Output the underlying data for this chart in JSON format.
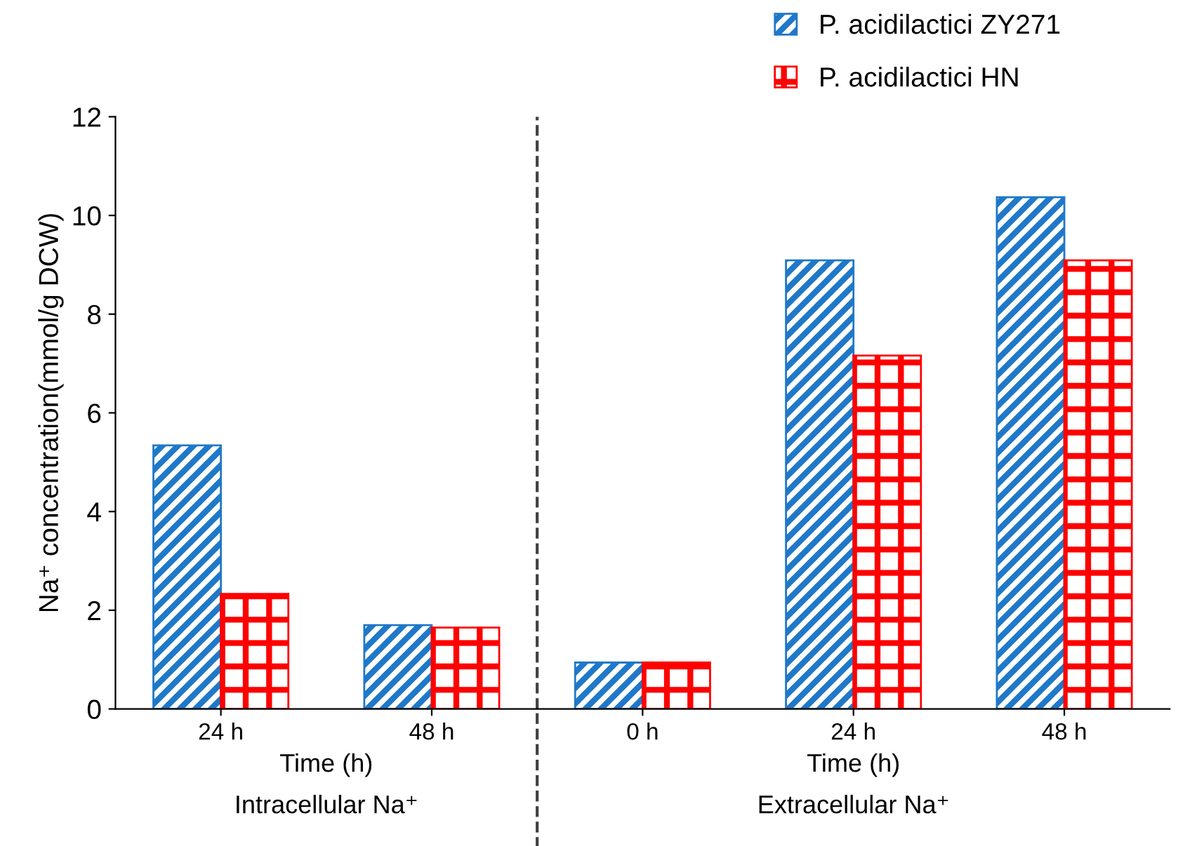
{
  "chart_data": {
    "type": "bar",
    "categories": [
      "24 h",
      "48 h",
      "0 h",
      "24 h",
      "48 h"
    ],
    "series": [
      {
        "name": "P. acidilactici ZY271",
        "color": "#1f78c8",
        "values": [
          5.34,
          1.7,
          0.94,
          9.09,
          10.37
        ]
      },
      {
        "name": "P. acidilactici HN",
        "color": "#ff0000",
        "values": [
          2.33,
          1.65,
          0.94,
          7.16,
          9.09
        ]
      }
    ],
    "xlabel": "Time (h)",
    "ylabel": "Na⁺ concentration(mmol/g DCW)",
    "annotations": [
      "Time (h)",
      "Intracellular Na⁺",
      "Extracellular Na⁺"
    ],
    "ylim": [
      0,
      12
    ],
    "yticks": [
      0,
      2,
      4,
      6,
      8,
      10,
      12
    ],
    "grid": false,
    "legend": "top right"
  }
}
